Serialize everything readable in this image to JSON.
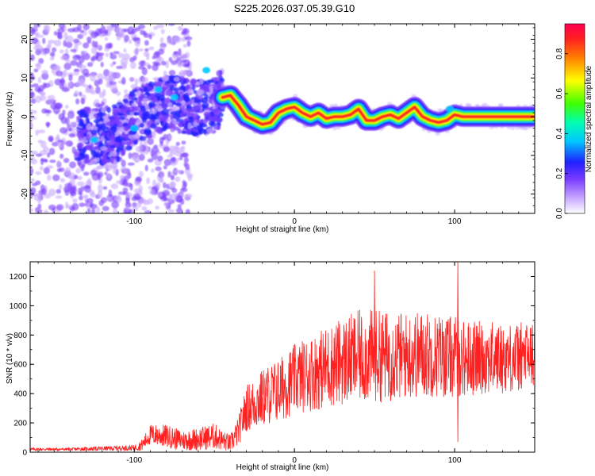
{
  "title": "S225.2026.037.05.39.G10",
  "chart_data": [
    {
      "type": "heatmap",
      "name": "spectrogram",
      "xlabel": "Height of straight line (km)",
      "ylabel": "Frequency (Hz)",
      "xlim": [
        -165,
        150
      ],
      "ylim": [
        -25,
        24
      ],
      "xticks": [
        -100,
        0,
        100
      ],
      "xtick_labels": [
        "-100",
        "0",
        "100"
      ],
      "yticks": [
        -20,
        -10,
        0,
        10,
        20
      ],
      "ytick_labels": [
        "-20",
        "-10",
        "0",
        "10",
        "20"
      ],
      "ridge": {
        "x": [
          -120,
          -110,
          -100,
          -90,
          -80,
          -70,
          -60,
          -50,
          -45,
          -40,
          -35,
          -30,
          -25,
          -20,
          -15,
          -10,
          -5,
          0,
          5,
          10,
          15,
          20,
          25,
          30,
          35,
          40,
          45,
          50,
          55,
          60,
          65,
          70,
          75,
          80,
          85,
          90,
          95,
          100,
          105,
          110,
          120,
          130,
          140,
          150
        ],
        "y": [
          -5,
          -4,
          0,
          2,
          4,
          3,
          2,
          3,
          5,
          5.5,
          3,
          0,
          -1,
          -2,
          -1.5,
          1,
          2,
          2.5,
          1,
          0,
          1,
          -0.5,
          0,
          0,
          0.5,
          2,
          -1,
          -1,
          0,
          0.5,
          -0.5,
          1,
          2.5,
          0,
          -1,
          -1.5,
          -1,
          0.5,
          0,
          0,
          0,
          0,
          0,
          0
        ]
      },
      "colorbar": {
        "label": "Normalized spectral amplitude",
        "range": [
          0,
          0.95
        ],
        "ticks": [
          0.0,
          0.2,
          0.4,
          0.6,
          0.8
        ],
        "tick_labels": [
          "0.0",
          "0.2",
          "0.4",
          "0.6",
          "0.8"
        ],
        "colors": [
          "#ffffff",
          "#c8a8ff",
          "#7a3cff",
          "#2020ff",
          "#00c8ff",
          "#00ff80",
          "#40ff00",
          "#ffff00",
          "#ff8000",
          "#ff2020",
          "#ff0050"
        ]
      }
    },
    {
      "type": "line",
      "name": "snr",
      "xlabel": "Height of straight line (km)",
      "ylabel": "SNR (10 * v/v)",
      "xlim": [
        -165,
        150
      ],
      "ylim": [
        0,
        1300
      ],
      "xticks": [
        -100,
        0,
        100
      ],
      "xtick_labels": [
        "-100",
        "0",
        "100"
      ],
      "yticks": [
        0,
        200,
        400,
        600,
        800,
        1000,
        1200
      ],
      "ytick_labels": [
        "0",
        "200",
        "400",
        "600",
        "800",
        "1000",
        "1200"
      ],
      "color": "#ff2020",
      "envelope": {
        "x": [
          -165,
          -140,
          -120,
          -100,
          -95,
          -90,
          -80,
          -70,
          -60,
          -50,
          -45,
          -40,
          -35,
          -30,
          -25,
          -20,
          -15,
          -10,
          -5,
          0,
          10,
          20,
          30,
          40,
          50,
          60,
          70,
          80,
          90,
          100,
          110,
          120,
          130,
          140,
          150
        ],
        "mean": [
          20,
          20,
          25,
          30,
          50,
          120,
          110,
          80,
          90,
          110,
          80,
          60,
          140,
          300,
          330,
          370,
          400,
          420,
          460,
          500,
          540,
          580,
          620,
          650,
          660,
          650,
          660,
          670,
          660,
          650,
          640,
          650,
          640,
          650,
          660
        ],
        "amplitude": [
          10,
          10,
          15,
          20,
          40,
          70,
          80,
          70,
          80,
          90,
          70,
          60,
          100,
          160,
          180,
          200,
          210,
          220,
          230,
          240,
          260,
          280,
          300,
          320,
          320,
          310,
          300,
          300,
          290,
          280,
          260,
          250,
          240,
          240,
          240
        ]
      },
      "annotations": [
        {
          "x": 50,
          "y": 1240,
          "label": ""
        },
        {
          "x": 102,
          "y": 1300,
          "label": ""
        },
        {
          "x": 102,
          "y": 70,
          "label": ""
        }
      ]
    }
  ]
}
